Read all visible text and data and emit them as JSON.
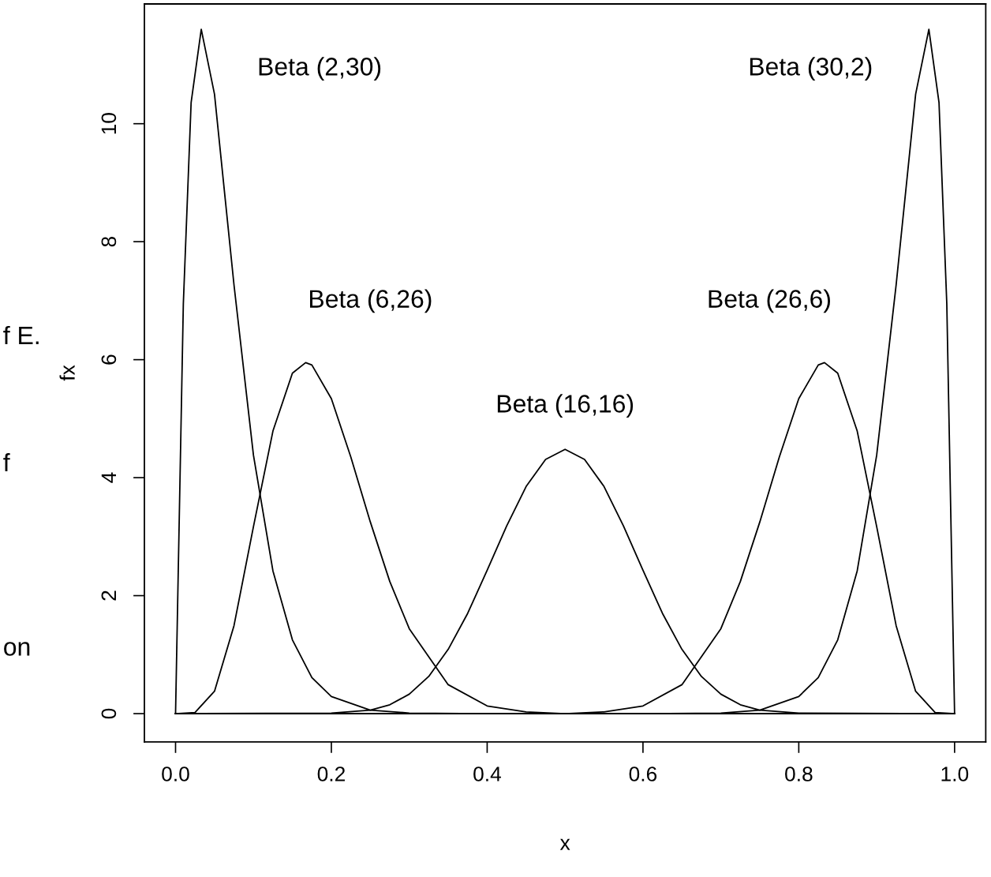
{
  "chart_data": {
    "type": "line",
    "xlabel": "x",
    "ylabel": "fx",
    "series": [
      {
        "name": "Beta (2,30)",
        "color": "#000000",
        "x": [
          0,
          0.01,
          0.02,
          0.033,
          0.05,
          0.075,
          0.1,
          0.125,
          0.15,
          0.175,
          0.2,
          0.25,
          0.3,
          0.4,
          0.6,
          0.8,
          1.0
        ],
        "values": [
          0,
          6.95,
          10.36,
          11.6,
          10.5,
          7.27,
          4.38,
          2.42,
          1.25,
          0.61,
          0.29,
          0.06,
          0.01,
          0,
          0,
          0,
          0
        ]
      },
      {
        "name": "Beta (6,26)",
        "color": "#000000",
        "x": [
          0,
          0.025,
          0.05,
          0.075,
          0.1,
          0.125,
          0.15,
          0.167,
          0.175,
          0.2,
          0.225,
          0.25,
          0.275,
          0.3,
          0.35,
          0.4,
          0.45,
          0.5,
          0.7,
          1.0
        ],
        "values": [
          0,
          0.02,
          0.38,
          1.49,
          3.17,
          4.79,
          5.77,
          5.95,
          5.91,
          5.34,
          4.35,
          3.25,
          2.24,
          1.44,
          0.49,
          0.13,
          0.03,
          0,
          0,
          0
        ]
      },
      {
        "name": "Beta (16,16)",
        "color": "#000000",
        "x": [
          0,
          0.2,
          0.25,
          0.275,
          0.3,
          0.325,
          0.35,
          0.375,
          0.4,
          0.425,
          0.45,
          0.475,
          0.5,
          0.525,
          0.55,
          0.575,
          0.6,
          0.625,
          0.65,
          0.675,
          0.7,
          0.725,
          0.75,
          0.8,
          1.0
        ],
        "values": [
          0,
          0.01,
          0.06,
          0.15,
          0.33,
          0.63,
          1.09,
          1.7,
          2.43,
          3.18,
          3.85,
          4.31,
          4.48,
          4.31,
          3.85,
          3.18,
          2.43,
          1.7,
          1.09,
          0.63,
          0.33,
          0.15,
          0.06,
          0.01,
          0
        ]
      },
      {
        "name": "Beta (26,6)",
        "color": "#000000",
        "x": [
          0,
          0.3,
          0.5,
          0.55,
          0.6,
          0.65,
          0.7,
          0.725,
          0.75,
          0.775,
          0.8,
          0.825,
          0.833,
          0.85,
          0.875,
          0.9,
          0.925,
          0.95,
          0.975,
          1.0
        ],
        "values": [
          0,
          0,
          0,
          0.03,
          0.13,
          0.49,
          1.44,
          2.24,
          3.25,
          4.35,
          5.34,
          5.91,
          5.95,
          5.77,
          4.79,
          3.17,
          1.49,
          0.38,
          0.02,
          0
        ]
      },
      {
        "name": "Beta (30,2)",
        "color": "#000000",
        "x": [
          0,
          0.2,
          0.4,
          0.6,
          0.7,
          0.75,
          0.8,
          0.825,
          0.85,
          0.875,
          0.9,
          0.925,
          0.95,
          0.967,
          0.98,
          0.99,
          1.0
        ],
        "values": [
          0,
          0,
          0,
          0,
          0.01,
          0.06,
          0.29,
          0.61,
          1.25,
          2.42,
          4.38,
          7.27,
          10.5,
          11.6,
          10.36,
          6.95,
          0
        ]
      }
    ],
    "xlim": [
      -0.04,
      1.04
    ],
    "ylim": [
      -0.48,
      12.03
    ],
    "xticks": [
      {
        "value": 0,
        "label": "0.0"
      },
      0.2,
      0.4,
      0.6,
      0.8,
      {
        "value": 1,
        "label": "1.0"
      }
    ],
    "yticks": [
      0,
      2,
      4,
      6,
      8,
      10
    ],
    "grid": false,
    "marker": "none",
    "line_style": "solid",
    "annotations": [
      "f E.",
      "f",
      "on"
    ]
  }
}
